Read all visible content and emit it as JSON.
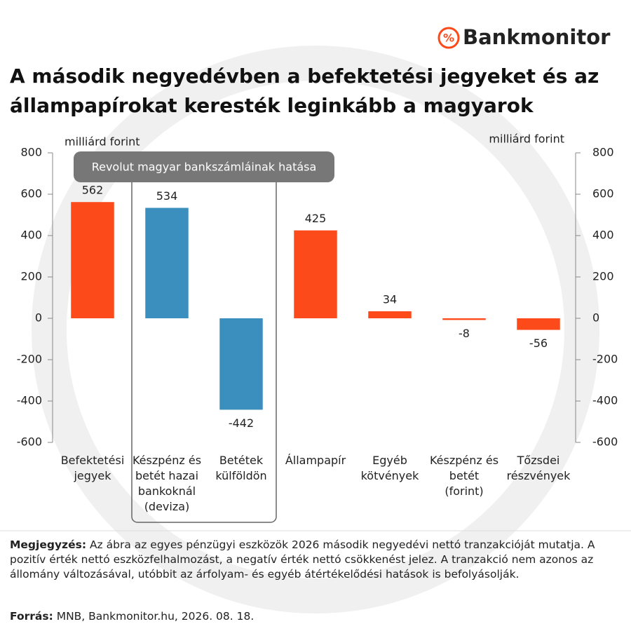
{
  "brand": "Bankmonitor",
  "chart_data": {
    "type": "bar",
    "title": "A második negyedévben a befektetési jegyeket és az állampapírokat keresték leginkább a magyarok",
    "y_label": "milliárd forint",
    "y2_label": "milliárd forint",
    "categories": [
      "Befektetési\njegyek",
      "Készpénz és\nbetét hazai\nbankoknál\n(deviza)",
      "Betétek\nkülföldön",
      "Állampapír",
      "Egyéb\nkötvények",
      "Készpénz és\nbetét\n(forint)",
      "Tőzsdei\nrészvények"
    ],
    "values": [
      562,
      534,
      -442,
      425,
      34,
      -8,
      -56
    ],
    "colors": [
      "#fc4a1a",
      "#3a8fbf",
      "#3a8fbf",
      "#fc4a1a",
      "#fc4a1a",
      "#fc4a1a",
      "#fc4a1a"
    ],
    "ylim": [
      -600,
      800
    ],
    "yticks": [
      -600,
      -400,
      -200,
      0,
      200,
      400,
      600,
      800
    ],
    "y2lim": [
      -600,
      800
    ],
    "y2ticks": [
      -600,
      -400,
      -200,
      0,
      200,
      400,
      600,
      800
    ],
    "annotation": {
      "text": "Revolut magyar bankszámláinak hatása",
      "categories": [
        1,
        2
      ]
    }
  },
  "note": {
    "label": "Megjegyzés:",
    "text": " Az ábra az egyes pénzügyi eszközök 2026 második negyedévi nettó tranzakcióját mutatja. A pozitív érték nettó eszközfelhalmozást, a negatív érték nettó csökkenést jelez. A tranzakció nem azonos az állomány változásával, utóbbit az árfolyam- és egyéb átértékelődési hatások is befolyásolják."
  },
  "source": {
    "label": "Forrás:",
    "text": " MNB, Bankmonitor.hu, 2026. 08. 18."
  }
}
